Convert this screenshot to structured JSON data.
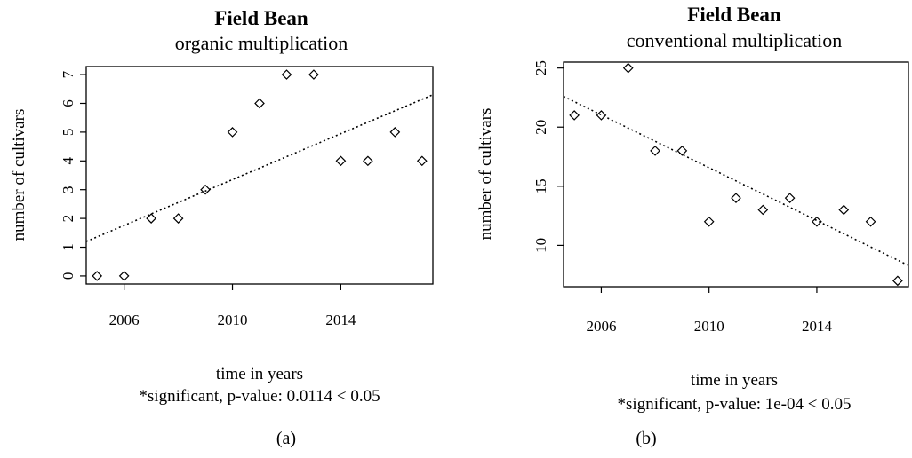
{
  "chart_data": [
    {
      "type": "scatter",
      "title": "Field Bean",
      "subtitle": "organic multiplication",
      "xlabel": "time in years",
      "ylabel": "number of cultivars",
      "note": "*significant, p-value:  0.0114  < 0.05",
      "caption": "(a)",
      "x_ticks": [
        2006,
        2010,
        2014
      ],
      "y_ticks": [
        0,
        1,
        2,
        3,
        4,
        5,
        6,
        7
      ],
      "xlim": [
        2004.6,
        2017.4
      ],
      "ylim": [
        -0.28,
        7.28
      ],
      "series": [
        {
          "x": [
            2005,
            2006,
            2007,
            2008,
            2009,
            2010,
            2011,
            2012,
            2013,
            2014,
            2015,
            2016,
            2017
          ],
          "y": [
            0,
            0,
            2,
            2,
            3,
            5,
            6,
            7,
            7,
            4,
            4,
            5,
            4
          ]
        }
      ],
      "trendline": {
        "x": [
          2004.6,
          2017.4
        ],
        "y": [
          1.2,
          6.3
        ]
      }
    },
    {
      "type": "scatter",
      "title": "Field Bean",
      "subtitle": "conventional multiplication",
      "xlabel": "time in years",
      "ylabel": "number of cultivars",
      "note": "*significant, p-value:  1e-04  < 0.05",
      "caption": "(b)",
      "x_ticks": [
        2006,
        2010,
        2014
      ],
      "y_ticks": [
        10,
        15,
        20,
        25
      ],
      "xlim": [
        2004.6,
        2017.4
      ],
      "ylim": [
        6.5,
        25.5
      ],
      "series": [
        {
          "x": [
            2005,
            2006,
            2007,
            2008,
            2009,
            2010,
            2011,
            2012,
            2013,
            2014,
            2015,
            2016,
            2017
          ],
          "y": [
            21,
            21,
            25,
            18,
            18,
            12,
            14,
            13,
            14,
            12,
            13,
            12,
            7
          ]
        }
      ],
      "trendline": {
        "x": [
          2004.6,
          2017.4
        ],
        "y": [
          22.6,
          8.3
        ]
      }
    }
  ]
}
